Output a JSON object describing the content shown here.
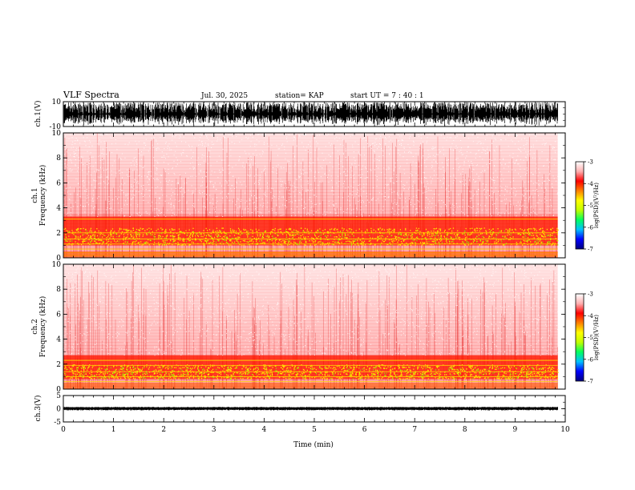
{
  "chart_data": {
    "type": "heatmap",
    "title": "VLF Spectra",
    "header": {
      "date": "Jul. 30, 2025",
      "station_text": "station= KAP",
      "start_text": "start  UT =   7 : 40 : 1"
    },
    "x_axis": {
      "label": "Time  (min)",
      "range": [
        0,
        10
      ],
      "ticks": [
        "0",
        "1",
        "2",
        "3",
        "4",
        "5",
        "6",
        "7",
        "8",
        "9",
        "10"
      ],
      "data_end": 9.85
    },
    "panels": [
      {
        "id": "ch1_waveform",
        "kind": "waveform",
        "ylabel": "ch.1(V)",
        "ylim": [
          -10,
          10
        ],
        "tick_labels": [
          "10",
          "-10"
        ],
        "amplitude": 9.5
      },
      {
        "id": "ch1_spectrogram",
        "kind": "spectrogram",
        "ylabel_top": "ch.1",
        "ylabel": "Frequency  (kHz)",
        "ylim": [
          0,
          10
        ],
        "tick_labels": [
          "0",
          "2",
          "4",
          "6",
          "8",
          "10"
        ],
        "strong_band_khz": [
          1.0,
          3.3
        ],
        "lines_khz": [
          0.2,
          0.4,
          0.7,
          1.1,
          1.5,
          2.0,
          3.1
        ]
      },
      {
        "id": "ch2_spectrogram",
        "kind": "spectrogram",
        "ylabel_top": "ch.2",
        "ylabel": "Frequency  (kHz)",
        "ylim": [
          0,
          10
        ],
        "tick_labels": [
          "0",
          "2",
          "4",
          "6",
          "8",
          "10"
        ],
        "strong_band_khz": [
          0.8,
          2.7
        ],
        "lines_khz": [
          0.6,
          1.0,
          1.4,
          1.9,
          2.3
        ]
      },
      {
        "id": "ch3_waveform",
        "kind": "waveform",
        "ylabel": "ch.3(V)",
        "ylim": [
          -5,
          5
        ],
        "tick_labels": [
          "5",
          "0",
          "-5"
        ],
        "amplitude": 0.7
      }
    ],
    "colorbar": {
      "label": "log(PSD)(V²/Hz)",
      "range": [
        -7,
        -3
      ],
      "tick_labels": [
        "-3",
        "-4",
        "-5",
        "-6",
        "-7"
      ],
      "colors": [
        "#000080",
        "#0000ff",
        "#00c0ff",
        "#00ff60",
        "#c0ff00",
        "#ffff00",
        "#ff8000",
        "#ff0000",
        "#ffb0b0",
        "#ffffff"
      ]
    }
  }
}
